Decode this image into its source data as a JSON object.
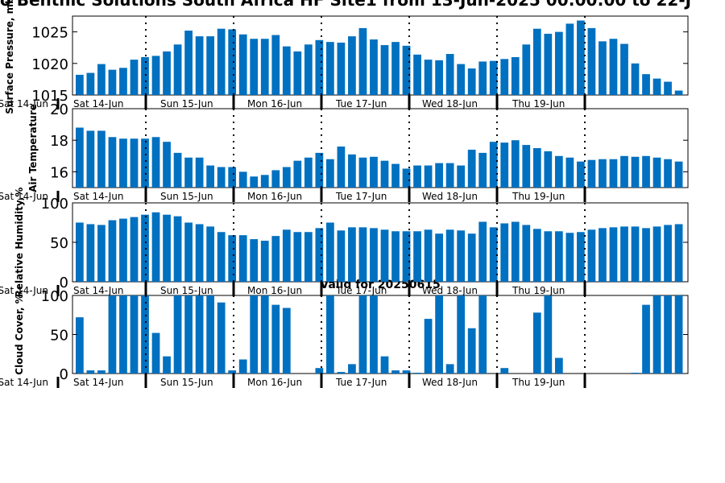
{
  "title": "o Benthic Solutions South Africa HF Site1 from 13-Jun-2025 00:00:00 to 22-J",
  "subtitle": "Valid for 20250615",
  "colors": {
    "bar": "#0070C0",
    "axis": "#000000"
  },
  "chart_data": [
    {
      "type": "bar",
      "ylabel": "Surface Pressure, mb",
      "ylim": [
        1015,
        1027.5
      ],
      "yticks": [
        1015,
        1020,
        1025
      ],
      "grid": false,
      "values": [
        1018.2,
        1018.5,
        1019.9,
        1019.0,
        1019.3,
        1020.6,
        1021.0,
        1021.2,
        1021.9,
        1023.0,
        1025.2,
        1024.3,
        1024.3,
        1025.5,
        1025.4,
        1024.6,
        1023.9,
        1023.9,
        1024.5,
        1022.7,
        1021.9,
        1023.0,
        1023.7,
        1023.4,
        1023.3,
        1024.3,
        1025.6,
        1023.8,
        1022.9,
        1023.4,
        1022.8,
        1021.4,
        1020.6,
        1020.5,
        1021.5,
        1019.9,
        1019.2,
        1020.3,
        1020.4,
        1020.7,
        1021.0,
        1023.0,
        1025.5,
        1024.7,
        1025.0,
        1026.3,
        1026.8,
        1025.6,
        1023.5,
        1023.9,
        1023.1,
        1020.0,
        1018.3,
        1017.6,
        1017.1,
        1015.7
      ],
      "corner_label": "Sat 14-Jun"
    },
    {
      "type": "bar",
      "ylabel": "Air Temperature",
      "ylim": [
        15,
        20
      ],
      "yticks": [
        16,
        18,
        20
      ],
      "grid": false,
      "values": [
        18.8,
        18.6,
        18.6,
        18.2,
        18.1,
        18.1,
        18.1,
        18.2,
        17.9,
        17.2,
        16.9,
        16.9,
        16.4,
        16.3,
        16.3,
        16.0,
        15.7,
        15.8,
        16.1,
        16.3,
        16.7,
        16.9,
        17.2,
        16.8,
        17.6,
        17.1,
        16.9,
        16.95,
        16.7,
        16.5,
        16.2,
        16.4,
        16.4,
        16.55,
        16.55,
        16.4,
        17.4,
        17.2,
        17.9,
        17.85,
        18.0,
        17.7,
        17.5,
        17.3,
        17.0,
        16.9,
        16.65,
        16.75,
        16.8,
        16.8,
        17.0,
        16.95,
        17.0,
        16.9,
        16.8,
        16.65
      ],
      "corner_label": "Sat 14-Jun"
    },
    {
      "type": "bar",
      "ylabel": "Relative Humidity,%",
      "ylim": [
        0,
        100
      ],
      "yticks": [
        0,
        50,
        100
      ],
      "grid": false,
      "values": [
        75,
        73,
        72,
        78,
        80,
        82,
        85,
        88,
        85,
        83,
        75,
        73,
        70,
        63,
        59,
        59,
        54,
        52,
        58,
        66,
        63,
        63,
        68,
        75,
        65,
        69,
        69,
        68,
        66,
        64,
        64,
        64,
        66,
        61,
        66,
        65,
        61,
        76,
        69,
        74,
        76,
        72,
        67,
        64,
        64,
        62,
        63,
        66,
        68,
        69,
        70,
        70,
        68,
        70,
        72,
        73
      ],
      "corner_label": "Sat 14-Jun"
    },
    {
      "type": "bar",
      "ylabel": "Cloud Cover, %",
      "ylim": [
        0,
        100
      ],
      "yticks": [
        0,
        50,
        100
      ],
      "grid": false,
      "values": [
        72,
        4,
        4,
        100,
        100,
        100,
        100,
        52,
        22,
        100,
        100,
        100,
        100,
        91,
        4,
        18,
        100,
        100,
        88,
        84,
        0,
        0,
        7,
        100,
        2,
        12,
        100,
        100,
        22,
        4,
        4,
        1,
        70,
        100,
        12,
        100,
        58,
        100,
        0,
        7,
        0,
        0,
        78,
        100,
        20,
        0,
        0,
        0,
        0,
        0,
        0,
        1,
        88,
        100,
        100,
        100
      ],
      "corner_label": "Sat 14-Jun"
    }
  ],
  "day_labels": [
    "Sat 14-Jun",
    "Sun 15-Jun",
    "Mon 16-Jun",
    "Tue 17-Jun",
    "Wed 18-Jun",
    "Thu 19-Jun"
  ]
}
